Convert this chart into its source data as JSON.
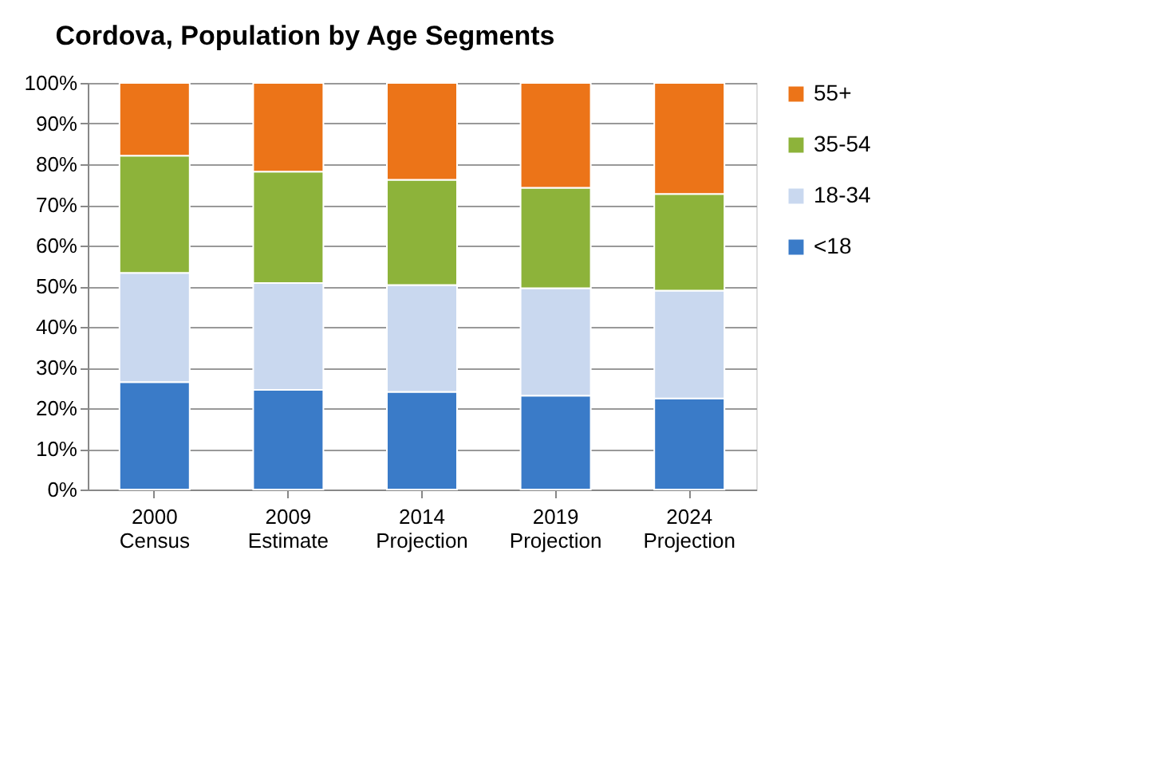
{
  "chart_data": {
    "type": "bar",
    "stacked": true,
    "title": "Cordova, Population by Age Segments",
    "categories": [
      "2000 Census",
      "2009 Estimate",
      "2014 Projection",
      "2019 Projection",
      "2024 Projection"
    ],
    "series": [
      {
        "name": "<18",
        "color": "#3a7bc8",
        "values": [
          26.4,
          24.5,
          24.0,
          23.1,
          22.4
        ]
      },
      {
        "name": "18-34",
        "color": "#c9d8ef",
        "values": [
          26.9,
          26.3,
          26.3,
          26.4,
          26.5
        ]
      },
      {
        "name": "35-54",
        "color": "#8db33a",
        "values": [
          28.8,
          27.4,
          25.9,
          24.7,
          23.8
        ]
      },
      {
        "name": "55+",
        "color": "#ec7418",
        "values": [
          17.9,
          21.8,
          23.8,
          25.8,
          27.3
        ]
      }
    ],
    "ylim": [
      0,
      100
    ],
    "yticks": [
      {
        "value": 0,
        "label": "0%"
      },
      {
        "value": 10,
        "label": "10%"
      },
      {
        "value": 20,
        "label": "20%"
      },
      {
        "value": 30,
        "label": "30%"
      },
      {
        "value": 40,
        "label": "40%"
      },
      {
        "value": 50,
        "label": "50%"
      },
      {
        "value": 60,
        "label": "60%"
      },
      {
        "value": 70,
        "label": "70%"
      },
      {
        "value": 80,
        "label": "80%"
      },
      {
        "value": 90,
        "label": "90%"
      },
      {
        "value": 100,
        "label": "100%"
      }
    ],
    "grid": "y",
    "legend": "right"
  }
}
